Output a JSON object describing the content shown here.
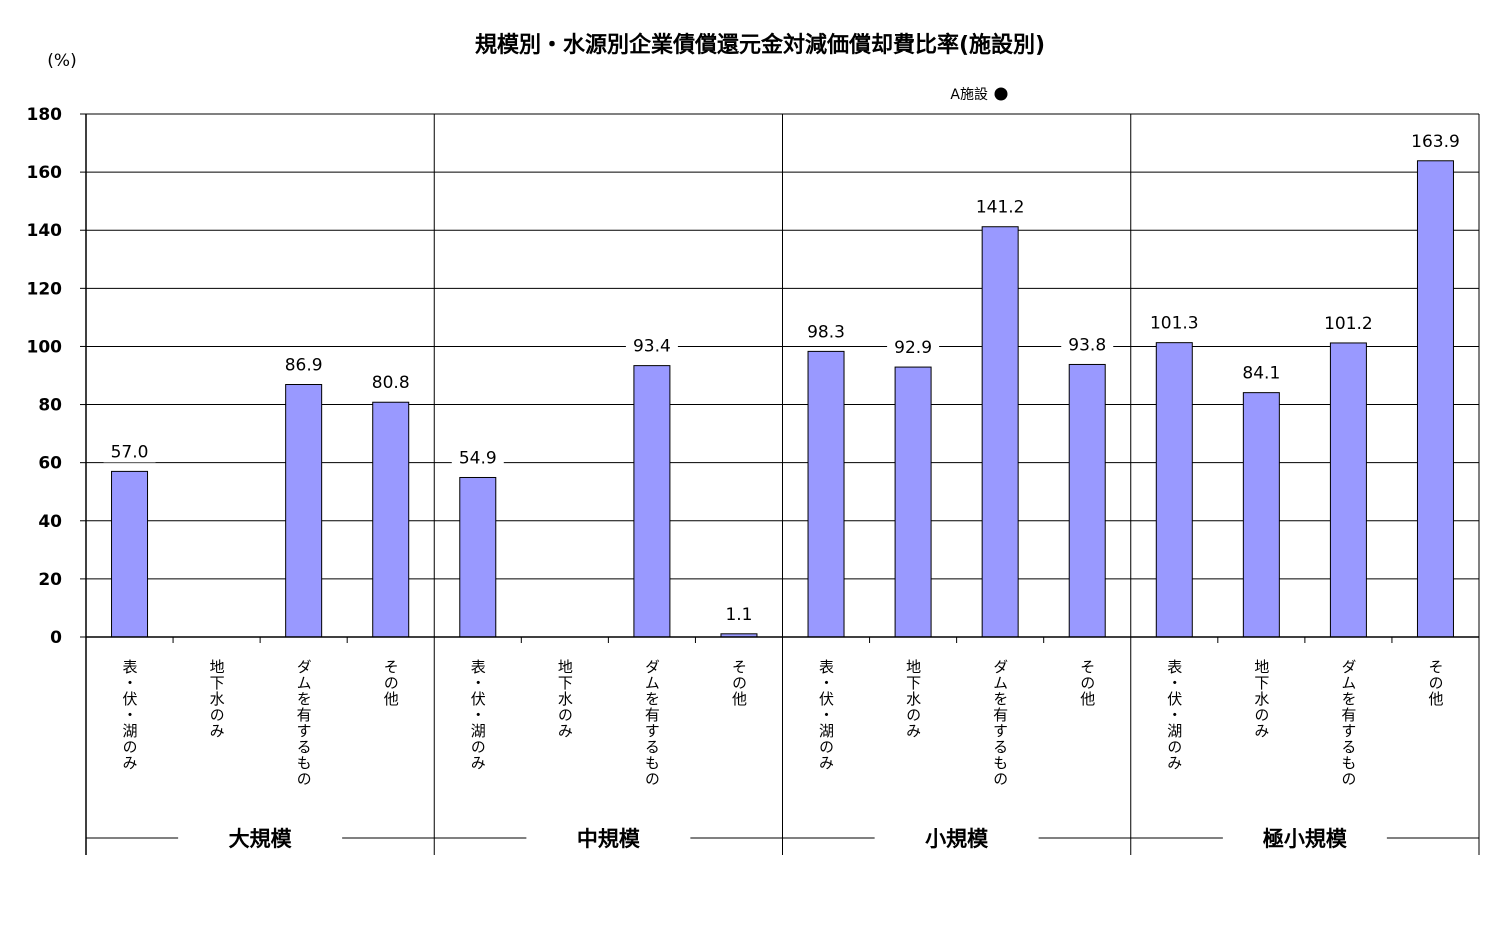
{
  "chart_data": {
    "type": "bar",
    "title": "規模別・水源別企業債償還元金対減価償却費比率(施設別)",
    "y_unit": "(%)",
    "ylim": [
      0,
      180
    ],
    "yticks": [
      0,
      20,
      40,
      60,
      80,
      100,
      120,
      140,
      160,
      180
    ],
    "grid": true,
    "legend": {
      "label": "A施設",
      "marker": "circle",
      "placement": "top-right"
    },
    "bar_color": "#9999ff",
    "groups": [
      {
        "name": "大規模",
        "categories": [
          "表・伏・湖のみ",
          "地下水のみ",
          "ダムを有するもの",
          "その他"
        ],
        "values": [
          57.0,
          null,
          86.9,
          80.8
        ],
        "labels": [
          "57.0",
          "",
          "86.9",
          "80.8"
        ]
      },
      {
        "name": "中規模",
        "categories": [
          "表・伏・湖のみ",
          "地下水のみ",
          "ダムを有するもの",
          "その他"
        ],
        "values": [
          54.9,
          null,
          93.4,
          1.1
        ],
        "labels": [
          "54.9",
          "",
          "93.4",
          "1.1"
        ]
      },
      {
        "name": "小規模",
        "categories": [
          "表・伏・湖のみ",
          "地下水のみ",
          "ダムを有するもの",
          "その他"
        ],
        "values": [
          98.3,
          92.9,
          141.2,
          93.8
        ],
        "labels": [
          "98.3",
          "92.9",
          "141.2",
          "93.8"
        ]
      },
      {
        "name": "極小規模",
        "categories": [
          "表・伏・湖のみ",
          "地下水のみ",
          "ダムを有するもの",
          "その他"
        ],
        "values": [
          101.3,
          84.1,
          101.2,
          163.9
        ],
        "labels": [
          "101.3",
          "84.1",
          "101.2",
          "163.9"
        ]
      }
    ]
  }
}
